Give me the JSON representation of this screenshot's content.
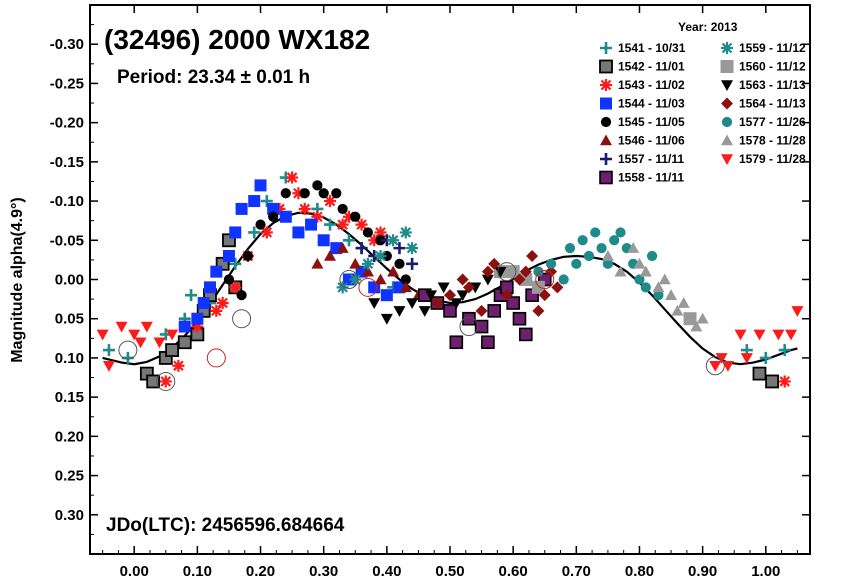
{
  "chart_data": {
    "type": "scatter",
    "title": "(32496) 2000 WX182",
    "subtitle": "Period: 23.34 ± 0.01 h",
    "ylabel": "Magnitude alpha(4.9°)",
    "jdo_label": "JDo(LTC): 2456596.684664",
    "xlim": [
      -0.07,
      1.07
    ],
    "ylim": [
      0.35,
      -0.35
    ],
    "y_inverted": true,
    "x_ticks": [
      "0.00",
      "0.10",
      "0.20",
      "0.30",
      "0.40",
      "0.50",
      "0.60",
      "0.70",
      "0.80",
      "0.90",
      "1.00"
    ],
    "y_ticks": [
      "-0.30",
      "-0.25",
      "-0.20",
      "-0.15",
      "-0.10",
      "-0.05",
      "0.00",
      "0.05",
      "0.10",
      "0.15",
      "0.20",
      "0.25",
      "0.30"
    ],
    "legend_title": "Year: 2013",
    "legend_placement": "top-right",
    "series": [
      {
        "name": "1541 - 10/31",
        "marker": "plus",
        "color": "#1f8a8a",
        "points": [
          [
            -0.04,
            0.09
          ],
          [
            -0.01,
            0.1
          ],
          [
            0.05,
            0.07
          ],
          [
            0.08,
            0.05
          ],
          [
            0.09,
            0.02
          ],
          [
            0.12,
            0.03
          ],
          [
            0.16,
            -0.02
          ],
          [
            0.19,
            -0.06
          ],
          [
            0.21,
            -0.1
          ],
          [
            0.24,
            -0.13
          ],
          [
            0.29,
            -0.09
          ],
          [
            0.31,
            -0.07
          ],
          [
            0.34,
            -0.05
          ],
          [
            0.36,
            -0.04
          ],
          [
            0.41,
            0.01
          ],
          [
            0.97,
            0.09
          ],
          [
            1.0,
            0.1
          ],
          [
            1.03,
            0.09
          ]
        ]
      },
      {
        "name": "1542 - 11/01",
        "marker": "square-dark",
        "color": "#666666",
        "points": [
          [
            0.02,
            0.12
          ],
          [
            0.03,
            0.13
          ],
          [
            0.05,
            0.1
          ],
          [
            0.06,
            0.09
          ],
          [
            0.08,
            0.08
          ],
          [
            0.1,
            0.07
          ],
          [
            0.11,
            0.04
          ],
          [
            0.12,
            0.02
          ],
          [
            0.14,
            -0.02
          ],
          [
            0.15,
            -0.05
          ],
          [
            0.16,
            0.01
          ],
          [
            0.99,
            0.12
          ],
          [
            1.01,
            0.13
          ]
        ]
      },
      {
        "name": "1543 - 11/02",
        "marker": "asterisk",
        "color": "#ff1a1a",
        "points": [
          [
            0.05,
            0.13
          ],
          [
            0.07,
            0.11
          ],
          [
            0.1,
            0.06
          ],
          [
            0.13,
            0.04
          ],
          [
            0.14,
            0.03
          ],
          [
            0.16,
            0.01
          ],
          [
            0.18,
            -0.03
          ],
          [
            0.21,
            -0.06
          ],
          [
            0.23,
            -0.09
          ],
          [
            0.25,
            -0.13
          ],
          [
            0.26,
            -0.11
          ],
          [
            0.27,
            -0.09
          ],
          [
            0.29,
            -0.08
          ],
          [
            0.31,
            -0.1
          ],
          [
            0.33,
            -0.07
          ],
          [
            0.34,
            -0.08
          ],
          [
            0.36,
            -0.07
          ],
          [
            0.38,
            -0.05
          ],
          [
            0.39,
            -0.06
          ],
          [
            1.03,
            0.13
          ]
        ]
      },
      {
        "name": "1544 - 11/03",
        "marker": "square",
        "color": "#1133ff",
        "points": [
          [
            0.08,
            0.06
          ],
          [
            0.1,
            0.05
          ],
          [
            0.11,
            0.03
          ],
          [
            0.12,
            0.01
          ],
          [
            0.13,
            -0.01
          ],
          [
            0.15,
            -0.03
          ],
          [
            0.16,
            -0.06
          ],
          [
            0.17,
            -0.09
          ],
          [
            0.19,
            -0.1
          ],
          [
            0.2,
            -0.12
          ],
          [
            0.22,
            -0.09
          ],
          [
            0.24,
            -0.08
          ],
          [
            0.26,
            -0.06
          ],
          [
            0.28,
            -0.07
          ],
          [
            0.3,
            -0.05
          ],
          [
            0.32,
            -0.04
          ],
          [
            0.34,
            0.0
          ],
          [
            0.36,
            -0.01
          ],
          [
            0.38,
            0.01
          ],
          [
            0.4,
            0.02
          ],
          [
            0.42,
            0.01
          ]
        ]
      },
      {
        "name": "1545 - 11/05",
        "marker": "circle",
        "color": "#000000",
        "points": [
          [
            0.15,
            0.0
          ],
          [
            0.17,
            0.02
          ],
          [
            0.18,
            -0.03
          ],
          [
            0.2,
            -0.07
          ],
          [
            0.22,
            -0.08
          ],
          [
            0.24,
            -0.11
          ],
          [
            0.27,
            -0.11
          ],
          [
            0.29,
            -0.12
          ],
          [
            0.3,
            -0.11
          ],
          [
            0.32,
            -0.11
          ],
          [
            0.33,
            -0.09
          ],
          [
            0.35,
            -0.08
          ],
          [
            0.37,
            -0.06
          ],
          [
            0.39,
            -0.05
          ],
          [
            0.4,
            -0.03
          ],
          [
            0.42,
            -0.02
          ],
          [
            0.43,
            0.0
          ]
        ]
      },
      {
        "name": "1546 - 11/06",
        "marker": "triangle-up",
        "color": "#8b1010",
        "points": [
          [
            0.29,
            -0.02
          ],
          [
            0.31,
            -0.03
          ],
          [
            0.33,
            -0.04
          ],
          [
            0.35,
            -0.02
          ],
          [
            0.37,
            -0.01
          ],
          [
            0.39,
            0.0
          ],
          [
            0.41,
            -0.01
          ],
          [
            0.43,
            0.01
          ],
          [
            0.45,
            0.02
          ]
        ]
      },
      {
        "name": "1557 - 11/11",
        "marker": "plus-dark",
        "color": "#1a1a6e",
        "points": [
          [
            0.36,
            -0.04
          ],
          [
            0.38,
            -0.03
          ],
          [
            0.4,
            -0.05
          ],
          [
            0.42,
            -0.04
          ],
          [
            0.44,
            -0.02
          ]
        ]
      },
      {
        "name": "1558 - 11/11",
        "marker": "square-purple",
        "color": "#6e1f6e",
        "points": [
          [
            0.46,
            0.02
          ],
          [
            0.48,
            0.03
          ],
          [
            0.5,
            0.04
          ],
          [
            0.51,
            0.08
          ],
          [
            0.53,
            0.05
          ],
          [
            0.55,
            0.06
          ],
          [
            0.56,
            0.08
          ],
          [
            0.57,
            0.04
          ],
          [
            0.58,
            0.02
          ],
          [
            0.59,
            0.01
          ],
          [
            0.6,
            0.03
          ],
          [
            0.61,
            0.05
          ],
          [
            0.62,
            0.07
          ],
          [
            0.63,
            0.02
          ],
          [
            0.65,
            0.0
          ]
        ]
      },
      {
        "name": "1559 - 11/12",
        "marker": "asterisk-teal",
        "color": "#1f8a8a",
        "points": [
          [
            0.33,
            0.01
          ],
          [
            0.35,
            0.0
          ],
          [
            0.37,
            -0.02
          ],
          [
            0.39,
            -0.03
          ],
          [
            0.41,
            -0.05
          ],
          [
            0.43,
            -0.06
          ],
          [
            0.44,
            -0.04
          ]
        ]
      },
      {
        "name": "1560 - 11/12",
        "marker": "square-light",
        "color": "#999999",
        "points": [
          [
            0.58,
            -0.01
          ],
          [
            0.6,
            -0.01
          ],
          [
            0.62,
            0.0
          ],
          [
            0.64,
            0.01
          ],
          [
            0.88,
            0.05
          ]
        ]
      },
      {
        "name": "1563 - 11/13",
        "marker": "triangle-down",
        "color": "#000000",
        "points": [
          [
            0.38,
            0.03
          ],
          [
            0.4,
            0.05
          ],
          [
            0.42,
            0.04
          ],
          [
            0.44,
            0.03
          ],
          [
            0.46,
            0.04
          ],
          [
            0.47,
            0.02
          ],
          [
            0.49,
            0.01
          ],
          [
            0.51,
            0.03
          ],
          [
            0.52,
            0.02
          ],
          [
            0.54,
            0.01
          ],
          [
            0.56,
            0.0
          ],
          [
            0.58,
            -0.01
          ]
        ]
      },
      {
        "name": "1564 - 11/13",
        "marker": "diamond",
        "color": "#8b1010",
        "points": [
          [
            0.48,
            0.03
          ],
          [
            0.5,
            0.02
          ],
          [
            0.52,
            0.0
          ],
          [
            0.53,
            0.01
          ],
          [
            0.55,
            0.04
          ],
          [
            0.56,
            -0.01
          ],
          [
            0.57,
            -0.02
          ],
          [
            0.59,
            0.02
          ],
          [
            0.61,
            0.0
          ],
          [
            0.62,
            -0.01
          ],
          [
            0.63,
            -0.03
          ],
          [
            0.64,
            0.04
          ],
          [
            0.65,
            0.02
          ],
          [
            0.66,
            -0.01
          ],
          [
            0.67,
            0.01
          ]
        ]
      },
      {
        "name": "1577 - 11/26",
        "marker": "circle-teal",
        "color": "#1f8a8a",
        "points": [
          [
            0.64,
            -0.01
          ],
          [
            0.66,
            -0.02
          ],
          [
            0.68,
            0.0
          ],
          [
            0.69,
            -0.04
          ],
          [
            0.7,
            -0.02
          ],
          [
            0.71,
            -0.05
          ],
          [
            0.72,
            -0.03
          ],
          [
            0.73,
            -0.06
          ],
          [
            0.74,
            -0.04
          ],
          [
            0.75,
            -0.02
          ],
          [
            0.76,
            -0.05
          ],
          [
            0.77,
            -0.06
          ],
          [
            0.78,
            -0.04
          ],
          [
            0.79,
            -0.02
          ],
          [
            0.8,
            0.0
          ],
          [
            0.81,
            0.01
          ],
          [
            0.82,
            -0.03
          ],
          [
            0.83,
            0.02
          ]
        ]
      },
      {
        "name": "1578 - 11/28",
        "marker": "triangle-up-light",
        "color": "#999999",
        "points": [
          [
            0.75,
            -0.03
          ],
          [
            0.77,
            -0.01
          ],
          [
            0.79,
            -0.04
          ],
          [
            0.8,
            -0.02
          ],
          [
            0.81,
            -0.01
          ],
          [
            0.83,
            0.01
          ],
          [
            0.84,
            0.0
          ],
          [
            0.85,
            0.02
          ],
          [
            0.86,
            0.04
          ],
          [
            0.87,
            0.03
          ],
          [
            0.88,
            0.05
          ],
          [
            0.89,
            0.06
          ],
          [
            0.9,
            0.05
          ]
        ]
      },
      {
        "name": "1579 - 11/28",
        "marker": "triangle-down-red",
        "color": "#ff1a1a",
        "points": [
          [
            -0.05,
            0.07
          ],
          [
            -0.04,
            0.11
          ],
          [
            -0.02,
            0.06
          ],
          [
            0.0,
            0.07
          ],
          [
            0.01,
            0.08
          ],
          [
            0.02,
            0.06
          ],
          [
            0.04,
            0.08
          ],
          [
            0.06,
            0.07
          ],
          [
            0.92,
            0.11
          ],
          [
            0.93,
            0.1
          ],
          [
            0.94,
            0.11
          ],
          [
            0.96,
            0.07
          ],
          [
            0.97,
            0.1
          ],
          [
            0.99,
            0.07
          ],
          [
            1.02,
            0.07
          ],
          [
            1.04,
            0.07
          ],
          [
            1.05,
            0.04
          ]
        ]
      }
    ],
    "fit_curve": {
      "name": "",
      "color": "#000000",
      "points": [
        [
          -0.05,
          0.1
        ],
        [
          -0.02,
          0.106
        ],
        [
          0.0,
          0.108
        ],
        [
          0.02,
          0.105
        ],
        [
          0.04,
          0.098
        ],
        [
          0.06,
          0.087
        ],
        [
          0.08,
          0.072
        ],
        [
          0.1,
          0.053
        ],
        [
          0.12,
          0.031
        ],
        [
          0.14,
          0.007
        ],
        [
          0.16,
          -0.017
        ],
        [
          0.18,
          -0.039
        ],
        [
          0.2,
          -0.058
        ],
        [
          0.22,
          -0.072
        ],
        [
          0.24,
          -0.081
        ],
        [
          0.26,
          -0.085
        ],
        [
          0.28,
          -0.084
        ],
        [
          0.3,
          -0.079
        ],
        [
          0.32,
          -0.07
        ],
        [
          0.34,
          -0.058
        ],
        [
          0.36,
          -0.044
        ],
        [
          0.38,
          -0.029
        ],
        [
          0.4,
          -0.014
        ],
        [
          0.42,
          0.0
        ],
        [
          0.44,
          0.012
        ],
        [
          0.46,
          0.021
        ],
        [
          0.48,
          0.027
        ],
        [
          0.5,
          0.03
        ],
        [
          0.52,
          0.029
        ],
        [
          0.54,
          0.025
        ],
        [
          0.56,
          0.018
        ],
        [
          0.58,
          0.009
        ],
        [
          0.6,
          -0.001
        ],
        [
          0.62,
          -0.011
        ],
        [
          0.64,
          -0.019
        ],
        [
          0.66,
          -0.025
        ],
        [
          0.68,
          -0.029
        ],
        [
          0.7,
          -0.03
        ],
        [
          0.72,
          -0.029
        ],
        [
          0.74,
          -0.026
        ],
        [
          0.76,
          -0.02
        ],
        [
          0.78,
          -0.01
        ],
        [
          0.8,
          0.004
        ],
        [
          0.82,
          0.02
        ],
        [
          0.84,
          0.038
        ],
        [
          0.86,
          0.056
        ],
        [
          0.88,
          0.073
        ],
        [
          0.9,
          0.088
        ],
        [
          0.92,
          0.099
        ],
        [
          0.94,
          0.106
        ],
        [
          0.96,
          0.108
        ],
        [
          0.98,
          0.106
        ],
        [
          1.0,
          0.102
        ],
        [
          1.02,
          0.096
        ],
        [
          1.04,
          0.09
        ],
        [
          1.05,
          0.088
        ]
      ]
    },
    "ring_markers": {
      "color_dark": "#666666",
      "points": [
        [
          -0.01,
          0.09
        ],
        [
          0.13,
          0.1
        ],
        [
          0.17,
          0.05
        ],
        [
          0.34,
          0.0
        ],
        [
          0.37,
          0.01
        ],
        [
          0.53,
          0.06
        ],
        [
          0.59,
          -0.01
        ],
        [
          0.65,
          0.0
        ],
        [
          0.92,
          0.11
        ],
        [
          0.05,
          0.13
        ]
      ]
    }
  }
}
